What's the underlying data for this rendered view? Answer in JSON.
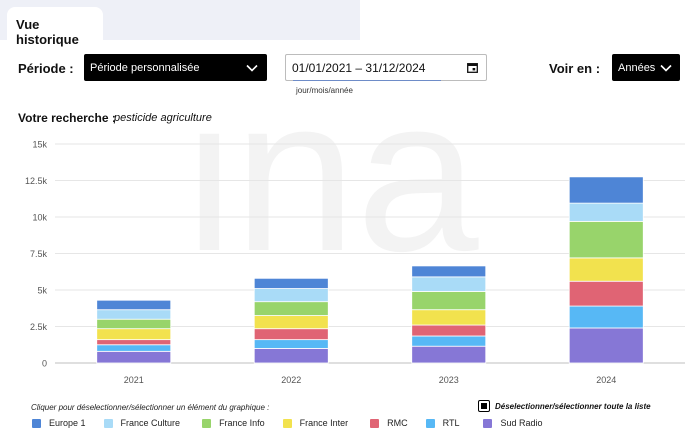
{
  "tab": {
    "label": "Vue historique"
  },
  "filters": {
    "periode_label": "Période :",
    "periode_value": "Période personnalisée",
    "date_value": "01/01/2021  –  31/12/2024",
    "date_hint": "jour/mois/année",
    "voir_en_label": "Voir en :",
    "voir_en_value": "Années"
  },
  "search": {
    "label": "Votre recherche :",
    "value": "pesticide agriculture"
  },
  "watermark": "ina",
  "legend_hint": "Cliquer pour déselectionner/sélectionner un élément du graphique :",
  "deselect_label": "Déselectionner/sélectionner toute la liste",
  "colors": {
    "Europe 1": "#4e85d6",
    "France Culture": "#a9dbf7",
    "France Info": "#98d46b",
    "France Inter": "#f2e24e",
    "RMC": "#e06474",
    "RTL": "#57b8f5",
    "Sud Radio": "#8677d6"
  },
  "chart_data": {
    "type": "bar",
    "stacked": true,
    "categories": [
      "2021",
      "2022",
      "2023",
      "2024"
    ],
    "y_ticks": [
      "0",
      "2.5k",
      "5k",
      "7.5k",
      "10k",
      "12.5k",
      "15k"
    ],
    "ylim": [
      0,
      15000
    ],
    "grid": true,
    "legend_position": "bottom",
    "series": [
      {
        "name": "Sud Radio",
        "values": [
          800,
          1000,
          1150,
          2400
        ]
      },
      {
        "name": "RTL",
        "values": [
          450,
          600,
          700,
          1500
        ]
      },
      {
        "name": "RMC",
        "values": [
          350,
          750,
          750,
          1700
        ]
      },
      {
        "name": "France Inter",
        "values": [
          750,
          900,
          1050,
          1600
        ]
      },
      {
        "name": "France Info",
        "values": [
          650,
          950,
          1250,
          2500
        ]
      },
      {
        "name": "France Culture",
        "values": [
          650,
          900,
          1000,
          1250
        ]
      },
      {
        "name": "Europe 1",
        "values": [
          650,
          700,
          750,
          1800
        ]
      }
    ],
    "legend_order": [
      "Europe 1",
      "France Culture",
      "France Info",
      "France Inter",
      "RMC",
      "RTL",
      "Sud Radio"
    ]
  }
}
